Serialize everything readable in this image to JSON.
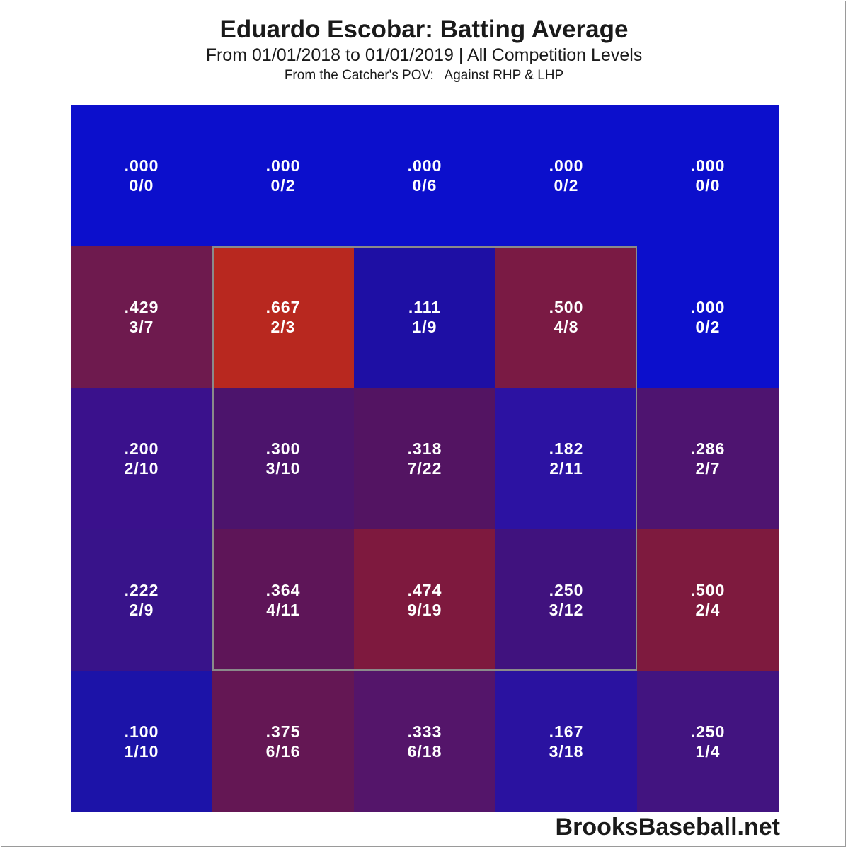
{
  "chart_data": {
    "type": "heatmap",
    "title": "Eduardo Escobar: Batting Average",
    "subtitle": "From 01/01/2018 to 01/01/2019 | All Competition Levels",
    "perspective": "From the Catcher's POV:   Against RHP & LHP",
    "rows": 5,
    "cols": 5,
    "strike_zone": {
      "row_start": 1,
      "row_end": 3,
      "col_start": 1,
      "col_end": 3
    },
    "cells": [
      [
        {
          "avg": ".000",
          "ratio": "0/0",
          "color": "#0C0FCC"
        },
        {
          "avg": ".000",
          "ratio": "0/2",
          "color": "#0C0FCC"
        },
        {
          "avg": ".000",
          "ratio": "0/6",
          "color": "#0C0FCC"
        },
        {
          "avg": ".000",
          "ratio": "0/2",
          "color": "#0C0FCC"
        },
        {
          "avg": ".000",
          "ratio": "0/0",
          "color": "#0C0FCC"
        }
      ],
      [
        {
          "avg": ".429",
          "ratio": "3/7",
          "color": "#6E1A4E"
        },
        {
          "avg": ".667",
          "ratio": "2/3",
          "color": "#B8281F"
        },
        {
          "avg": ".111",
          "ratio": "1/9",
          "color": "#1E0FA4"
        },
        {
          "avg": ".500",
          "ratio": "4/8",
          "color": "#7A1A44"
        },
        {
          "avg": ".000",
          "ratio": "0/2",
          "color": "#0C0FCC"
        }
      ],
      [
        {
          "avg": ".200",
          "ratio": "2/10",
          "color": "#3A118C"
        },
        {
          "avg": ".300",
          "ratio": "3/10",
          "color": "#4C146C"
        },
        {
          "avg": ".318",
          "ratio": "7/22",
          "color": "#531462"
        },
        {
          "avg": ".182",
          "ratio": "2/11",
          "color": "#2C12A2"
        },
        {
          "avg": ".286",
          "ratio": "2/7",
          "color": "#4E1470"
        }
      ],
      [
        {
          "avg": ".222",
          "ratio": "2/9",
          "color": "#38138A"
        },
        {
          "avg": ".364",
          "ratio": "4/11",
          "color": "#5E1558"
        },
        {
          "avg": ".474",
          "ratio": "9/19",
          "color": "#7E193E"
        },
        {
          "avg": ".250",
          "ratio": "3/12",
          "color": "#40127E"
        },
        {
          "avg": ".500",
          "ratio": "2/4",
          "color": "#7E1A3E"
        }
      ],
      [
        {
          "avg": ".100",
          "ratio": "1/10",
          "color": "#1C13A8"
        },
        {
          "avg": ".375",
          "ratio": "6/16",
          "color": "#641754"
        },
        {
          "avg": ".333",
          "ratio": "6/18",
          "color": "#54156A"
        },
        {
          "avg": ".167",
          "ratio": "3/18",
          "color": "#2A12A0"
        },
        {
          "avg": ".250",
          "ratio": "1/4",
          "color": "#421480"
        }
      ]
    ]
  },
  "footer": {
    "source": "BrooksBaseball.net"
  }
}
